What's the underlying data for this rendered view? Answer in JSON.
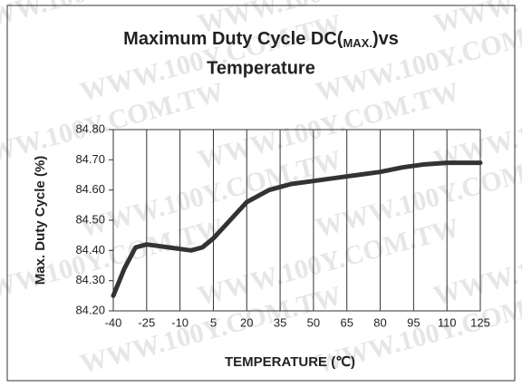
{
  "chart_data": {
    "type": "line",
    "title": {
      "text": "Maximum Duty Cycle DC(",
      "subscript": "MAX.",
      "text_after": ")vs",
      "line2": "Temperature"
    },
    "xlabel": "TEMPERATURE (℃)",
    "ylabel": "Max. Duty Cycle (%)",
    "watermark": "WWW.100Y.COM.TW",
    "x": [
      -40,
      -35,
      -30,
      -25,
      -20,
      -15,
      -10,
      -5,
      0,
      5,
      10,
      15,
      20,
      25,
      30,
      35,
      40,
      50,
      60,
      70,
      80,
      90,
      100,
      110,
      125
    ],
    "series": [
      {
        "name": "DC(MAX.)",
        "color": "#333333",
        "values": [
          84.25,
          84.34,
          84.41,
          84.42,
          84.415,
          84.41,
          84.405,
          84.4,
          84.41,
          84.44,
          84.48,
          84.52,
          84.56,
          84.58,
          84.6,
          84.61,
          84.62,
          84.63,
          84.64,
          84.65,
          84.66,
          84.675,
          84.685,
          84.69,
          84.69
        ]
      }
    ],
    "xlim": [
      -40,
      125
    ],
    "xticks": [
      -40,
      -25,
      -10,
      5,
      20,
      35,
      50,
      65,
      80,
      95,
      110,
      125
    ],
    "ylim": [
      84.2,
      84.8
    ],
    "yticks": [
      {
        "value": 84.2,
        "label": "84.20"
      },
      {
        "value": 84.3,
        "label": "84.30"
      },
      {
        "value": 84.4,
        "label": "84.40"
      },
      {
        "value": 84.5,
        "label": "84.50"
      },
      {
        "value": 84.6,
        "label": "84.60"
      },
      {
        "value": 84.7,
        "label": "84.70"
      },
      {
        "value": 84.8,
        "label": "84.80"
      }
    ],
    "grid": "x"
  }
}
